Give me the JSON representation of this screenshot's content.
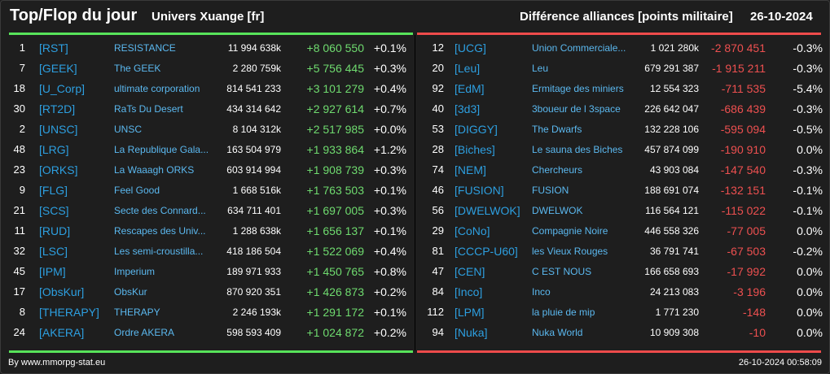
{
  "header": {
    "title": "Top/Flop du jour",
    "universe": "Univers Xuange [fr]",
    "metric": "Différence alliances [points militaire]",
    "date": "26-10-2024"
  },
  "colors": {
    "gain": "#6fdb6f",
    "loss": "#ee5050",
    "tag": "#2d9fe0",
    "name": "#5bb8ef"
  },
  "top": [
    {
      "rank": "1",
      "tag": "[RST]",
      "name": "RESISTANCE",
      "points": "11 994 638k",
      "delta": "+8 060 550",
      "pct": "+0.1%"
    },
    {
      "rank": "7",
      "tag": "[GEEK]",
      "name": "The GEEK",
      "points": "2 280 759k",
      "delta": "+5 756 445",
      "pct": "+0.3%"
    },
    {
      "rank": "18",
      "tag": "[U_Corp]",
      "name": "ultimate corporation",
      "points": "814 541 233",
      "delta": "+3 101 279",
      "pct": "+0.4%"
    },
    {
      "rank": "30",
      "tag": "[RT2D]",
      "name": "RaTs Du Desert",
      "points": "434 314 642",
      "delta": "+2 927 614",
      "pct": "+0.7%"
    },
    {
      "rank": "2",
      "tag": "[UNSC]",
      "name": "UNSC",
      "points": "8 104 312k",
      "delta": "+2 517 985",
      "pct": "+0.0%"
    },
    {
      "rank": "48",
      "tag": "[LRG]",
      "name": "La Republique Gala...",
      "points": "163 504 979",
      "delta": "+1 933 864",
      "pct": "+1.2%"
    },
    {
      "rank": "23",
      "tag": "[ORKS]",
      "name": "La Waaagh ORKS",
      "points": "603 914 994",
      "delta": "+1 908 739",
      "pct": "+0.3%"
    },
    {
      "rank": "9",
      "tag": "[FLG]",
      "name": "Feel Good",
      "points": "1 668 516k",
      "delta": "+1 763 503",
      "pct": "+0.1%"
    },
    {
      "rank": "21",
      "tag": "[SCS]",
      "name": "Secte des Connard...",
      "points": "634 711 401",
      "delta": "+1 697 005",
      "pct": "+0.3%"
    },
    {
      "rank": "11",
      "tag": "[RUD]",
      "name": "Rescapes des Univ...",
      "points": "1 288 638k",
      "delta": "+1 656 137",
      "pct": "+0.1%"
    },
    {
      "rank": "32",
      "tag": "[LSC]",
      "name": "Les semi-croustilla...",
      "points": "418 186 504",
      "delta": "+1 522 069",
      "pct": "+0.4%"
    },
    {
      "rank": "45",
      "tag": "[IPM]",
      "name": "Imperium",
      "points": "189 971 933",
      "delta": "+1 450 765",
      "pct": "+0.8%"
    },
    {
      "rank": "17",
      "tag": "[ObsKur]",
      "name": "ObsKur",
      "points": "870 920 351",
      "delta": "+1 426 873",
      "pct": "+0.2%"
    },
    {
      "rank": "8",
      "tag": "[THERAPY]",
      "name": "THERAPY",
      "points": "2 246 193k",
      "delta": "+1 291 172",
      "pct": "+0.1%"
    },
    {
      "rank": "24",
      "tag": "[AKERA]",
      "name": "Ordre AKERA",
      "points": "598 593 409",
      "delta": "+1 024 872",
      "pct": "+0.2%"
    }
  ],
  "flop": [
    {
      "rank": "12",
      "tag": "[UCG]",
      "name": "Union Commerciale...",
      "points": "1 021 280k",
      "delta": "-2 870 451",
      "pct": "-0.3%"
    },
    {
      "rank": "20",
      "tag": "[Leu]",
      "name": "Leu",
      "points": "679 291 387",
      "delta": "-1 915 211",
      "pct": "-0.3%"
    },
    {
      "rank": "92",
      "tag": "[EdM]",
      "name": "Ermitage des miniers",
      "points": "12 554 323",
      "delta": "-711 535",
      "pct": "-5.4%"
    },
    {
      "rank": "40",
      "tag": "[3d3]",
      "name": "3boueur de l 3space",
      "points": "226 642 047",
      "delta": "-686 439",
      "pct": "-0.3%"
    },
    {
      "rank": "53",
      "tag": "[DIGGY]",
      "name": "The Dwarfs",
      "points": "132 228 106",
      "delta": "-595 094",
      "pct": "-0.5%"
    },
    {
      "rank": "28",
      "tag": "[Biches]",
      "name": "Le sauna des Biches",
      "points": "457 874 099",
      "delta": "-190 910",
      "pct": "0.0%"
    },
    {
      "rank": "74",
      "tag": "[NEM]",
      "name": "Chercheurs",
      "points": "43 903 084",
      "delta": "-147 540",
      "pct": "-0.3%"
    },
    {
      "rank": "46",
      "tag": "[FUSION]",
      "name": "FUSION",
      "points": "188 691 074",
      "delta": "-132 151",
      "pct": "-0.1%"
    },
    {
      "rank": "56",
      "tag": "[DWELWOK]",
      "name": "DWELWOK",
      "points": "116 564 121",
      "delta": "-115 022",
      "pct": "-0.1%"
    },
    {
      "rank": "29",
      "tag": "[CoNo]",
      "name": "Compagnie Noire",
      "points": "446 558 326",
      "delta": "-77 005",
      "pct": "0.0%"
    },
    {
      "rank": "81",
      "tag": "[CCCP-U60]",
      "name": "les Vieux Rouges",
      "points": "36 791 741",
      "delta": "-67 503",
      "pct": "-0.2%"
    },
    {
      "rank": "47",
      "tag": "[CEN]",
      "name": "C EST NOUS",
      "points": "166 658 693",
      "delta": "-17 992",
      "pct": "0.0%"
    },
    {
      "rank": "84",
      "tag": "[Inco]",
      "name": "Inco",
      "points": "24 213 083",
      "delta": "-3 196",
      "pct": "0.0%"
    },
    {
      "rank": "112",
      "tag": "[LPM]",
      "name": "la pluie de mip",
      "points": "1 771 230",
      "delta": "-148",
      "pct": "0.0%"
    },
    {
      "rank": "94",
      "tag": "[Nuka]",
      "name": "Nuka World",
      "points": "10 909 308",
      "delta": "-10",
      "pct": "0.0%"
    }
  ],
  "footer": {
    "source": "By www.mmorpg-stat.eu",
    "timestamp": "26-10-2024 00:58:09"
  }
}
